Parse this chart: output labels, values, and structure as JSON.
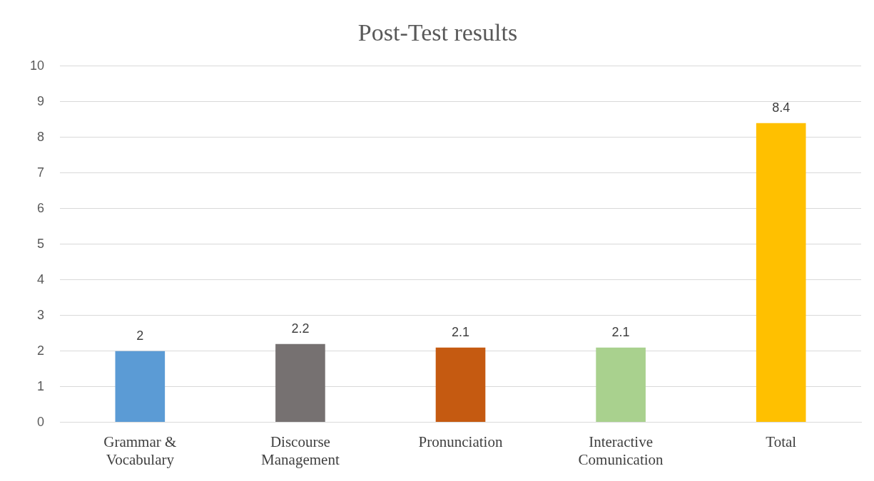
{
  "chart_data": {
    "type": "bar",
    "title": "Post-Test results",
    "categories": [
      "Grammar & Vocabulary",
      "Discourse Management",
      "Pronunciation",
      "Interactive Comunication",
      "Total"
    ],
    "values": [
      2,
      2.2,
      2.1,
      2.1,
      8.4
    ],
    "colors": [
      "#5b9bd5",
      "#767171",
      "#c55a11",
      "#a9d18e",
      "#ffc000"
    ],
    "ylim": [
      0,
      10
    ],
    "yticks": [
      0,
      1,
      2,
      3,
      4,
      5,
      6,
      7,
      8,
      9,
      10
    ],
    "grid": "y",
    "data_labels": true,
    "legend": false
  }
}
